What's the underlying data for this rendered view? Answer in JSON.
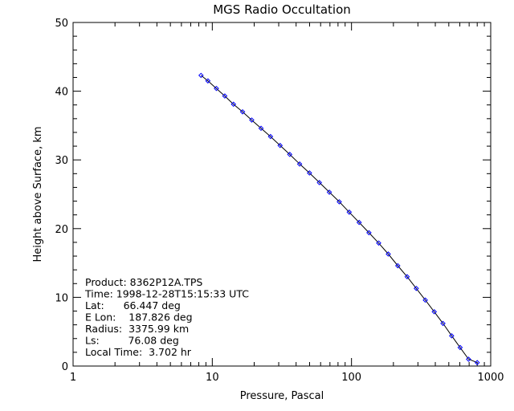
{
  "chart_data": {
    "type": "scatter",
    "title": "MGS Radio Occultation",
    "xlabel": "Pressure, Pascal",
    "ylabel": "Height above Surface, km",
    "xscale": "log",
    "xlim": [
      1,
      1000
    ],
    "ylim": [
      0,
      50
    ],
    "x_ticks": [
      1,
      10,
      100,
      1000
    ],
    "x_tick_labels": [
      "1",
      "10",
      "100",
      "1000"
    ],
    "y_ticks": [
      0,
      10,
      20,
      30,
      40,
      50
    ],
    "y_tick_labels": [
      "0",
      "10",
      "20",
      "30",
      "40",
      "50"
    ],
    "grid": false,
    "line_color": "#000000",
    "marker_color": "#0000ff",
    "marker": "diamond",
    "series": [
      {
        "x": [
          8.3,
          9.3,
          10.7,
          12.3,
          14.2,
          16.5,
          19.2,
          22.4,
          26.2,
          30.7,
          36.0,
          42.4,
          49.9,
          58.8,
          69.3,
          81.7,
          96.3,
          113.5,
          133.5,
          156.8,
          183.8,
          215,
          251,
          292,
          339,
          393,
          454,
          524,
          603,
          693,
          800
        ],
        "y": [
          42.3,
          41.5,
          40.4,
          39.3,
          38.1,
          37.0,
          35.8,
          34.6,
          33.4,
          32.1,
          30.8,
          29.4,
          28.1,
          26.7,
          25.3,
          23.9,
          22.4,
          20.9,
          19.4,
          17.9,
          16.3,
          14.6,
          13.0,
          11.3,
          9.6,
          7.9,
          6.2,
          4.4,
          2.7,
          1.0,
          0.5
        ]
      }
    ],
    "annotations": [
      "Product: 8362P12A.TPS",
      "Time: 1998-12-28T15:15:33 UTC",
      "Lat:      66.447 deg",
      "E Lon:    187.826 deg",
      "Radius:  3375.99 km",
      "Ls:         76.08 deg",
      "Local Time:  3.702 hr"
    ]
  }
}
